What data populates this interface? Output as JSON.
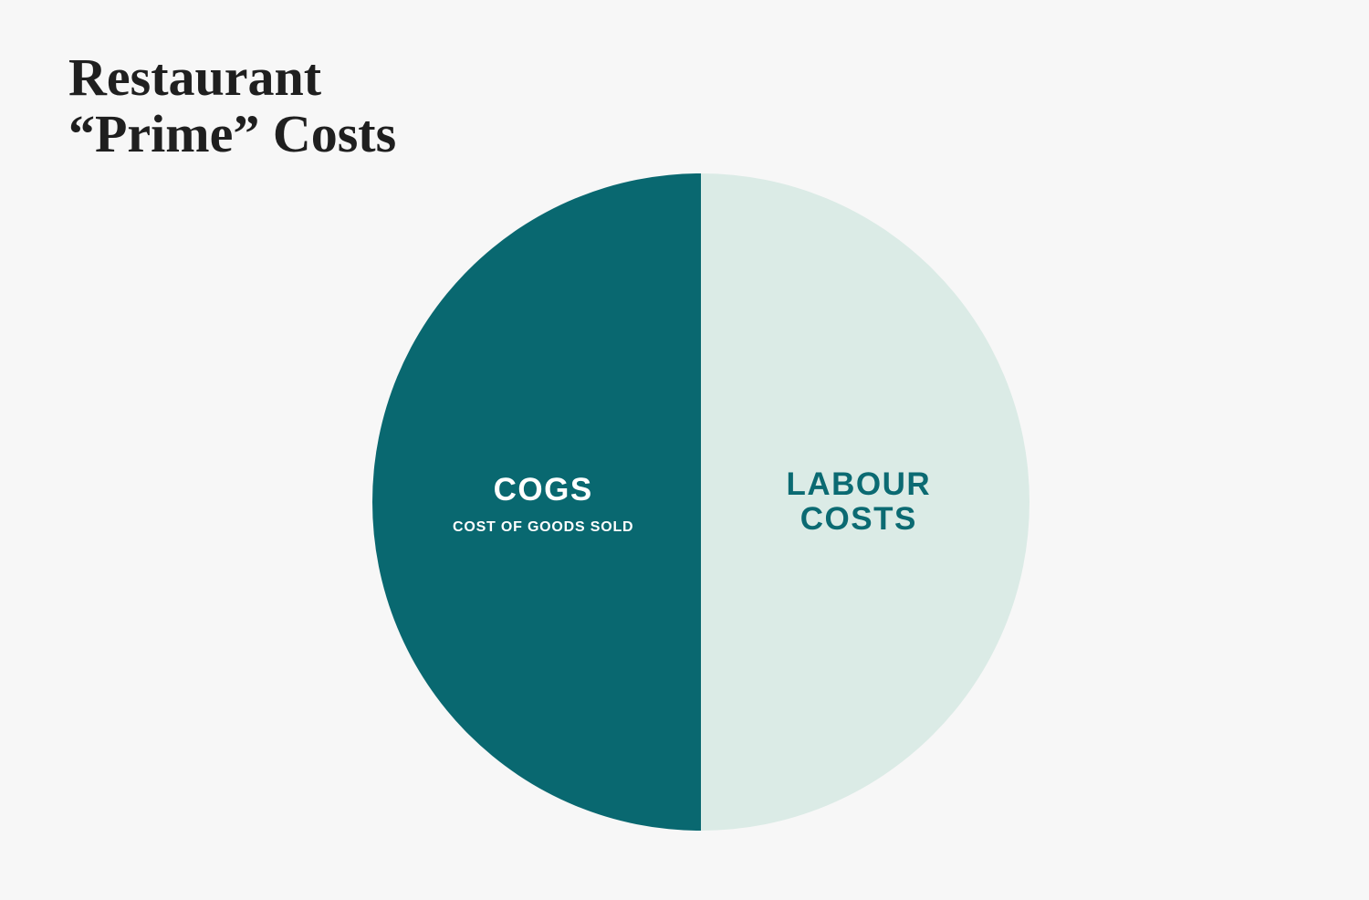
{
  "chart_data": {
    "type": "pie",
    "title_lines": [
      "Restaurant",
      "“Prime” Costs"
    ],
    "slices": [
      {
        "label_lines": [
          "COGS"
        ],
        "sublabel": "COST OF GOODS SOLD",
        "value": 50,
        "color": "#096870",
        "text_color": "#ffffff"
      },
      {
        "label_lines": [
          "LABOUR",
          "COSTS"
        ],
        "sublabel": "",
        "value": 50,
        "color": "#dbebe6",
        "text_color": "#0b6a72"
      }
    ]
  }
}
